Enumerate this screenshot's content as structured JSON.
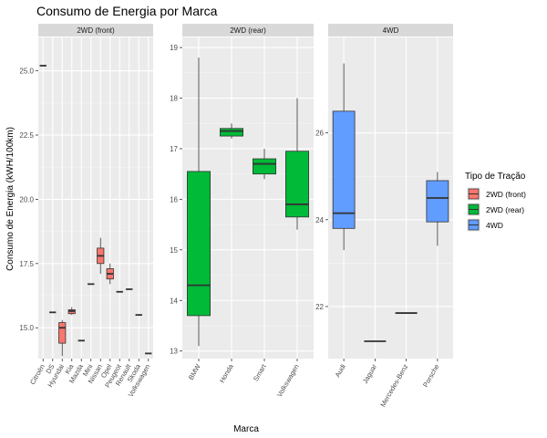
{
  "chart_data": {
    "type": "boxplot",
    "title": "Consumo de Energia por Marca",
    "xlabel": "Marca",
    "ylabel": "Consumo de Energia (kWH/100km)",
    "legend": {
      "title": "Tipo de Tração",
      "position": "right",
      "entries": [
        {
          "label": "2WD (front)",
          "color": "#F8766D"
        },
        {
          "label": "2WD (rear)",
          "color": "#00BA38"
        },
        {
          "label": "4WD",
          "color": "#619CFF"
        }
      ]
    },
    "grid": true,
    "facets": [
      {
        "label": "2WD (front)",
        "color": "#F8766D",
        "ylim": [
          13.8,
          26.3
        ],
        "yticks": [
          15.0,
          17.5,
          20.0,
          22.5,
          25.0
        ],
        "ytick_labels": [
          "15.0",
          "17.5",
          "20.0",
          "22.5",
          "25.0"
        ],
        "categories": [
          "Citroën",
          "DS",
          "Hyundai",
          "Kia",
          "Mazda",
          "Mini",
          "Nissan",
          "Opel",
          "Peugeot",
          "Renault",
          "Skoda",
          "Volkswagen"
        ],
        "boxes": [
          {
            "category": "Citroën",
            "min": 25.2,
            "q1": 25.2,
            "median": 25.2,
            "q3": 25.2,
            "max": 25.2
          },
          {
            "category": "DS",
            "min": 15.6,
            "q1": 15.6,
            "median": 15.6,
            "q3": 15.6,
            "max": 15.6
          },
          {
            "category": "Hyundai",
            "min": 13.9,
            "q1": 14.4,
            "median": 15.0,
            "q3": 15.2,
            "max": 15.3
          },
          {
            "category": "Kia",
            "min": 15.5,
            "q1": 15.55,
            "median": 15.65,
            "q3": 15.7,
            "max": 15.8
          },
          {
            "category": "Mazda",
            "min": 14.5,
            "q1": 14.5,
            "median": 14.5,
            "q3": 14.5,
            "max": 14.5
          },
          {
            "category": "Mini",
            "min": 16.7,
            "q1": 16.7,
            "median": 16.7,
            "q3": 16.7,
            "max": 16.7
          },
          {
            "category": "Nissan",
            "min": 17.1,
            "q1": 17.5,
            "median": 17.8,
            "q3": 18.1,
            "max": 18.5
          },
          {
            "category": "Opel",
            "min": 16.7,
            "q1": 16.9,
            "median": 17.1,
            "q3": 17.3,
            "max": 17.5
          },
          {
            "category": "Peugeot",
            "min": 16.4,
            "q1": 16.4,
            "median": 16.4,
            "q3": 16.4,
            "max": 16.4
          },
          {
            "category": "Renault",
            "min": 16.5,
            "q1": 16.5,
            "median": 16.5,
            "q3": 16.5,
            "max": 16.5
          },
          {
            "category": "Skoda",
            "min": 15.5,
            "q1": 15.5,
            "median": 15.5,
            "q3": 15.5,
            "max": 15.5
          },
          {
            "category": "Volkswagen",
            "min": 14.0,
            "q1": 14.0,
            "median": 14.0,
            "q3": 14.0,
            "max": 14.0
          }
        ]
      },
      {
        "label": "2WD (rear)",
        "color": "#00BA38",
        "ylim": [
          12.85,
          19.2
        ],
        "yticks": [
          13,
          14,
          15,
          16,
          17,
          18,
          19
        ],
        "ytick_labels": [
          "13",
          "14",
          "15",
          "16",
          "17",
          "18",
          "19"
        ],
        "categories": [
          "BMW",
          "Honda",
          "Smart",
          "Volkswagen"
        ],
        "boxes": [
          {
            "category": "BMW",
            "min": 13.1,
            "q1": 13.7,
            "median": 14.3,
            "q3": 16.55,
            "max": 18.8
          },
          {
            "category": "Honda",
            "min": 17.2,
            "q1": 17.25,
            "median": 17.35,
            "q3": 17.4,
            "max": 17.5
          },
          {
            "category": "Smart",
            "min": 16.4,
            "q1": 16.5,
            "median": 16.7,
            "q3": 16.8,
            "max": 17.0
          },
          {
            "category": "Volkswagen",
            "min": 15.4,
            "q1": 15.65,
            "median": 15.9,
            "q3": 16.95,
            "max": 18.0
          }
        ]
      },
      {
        "label": "4WD",
        "color": "#619CFF",
        "ylim": [
          20.8,
          28.2
        ],
        "yticks": [
          22,
          24,
          26
        ],
        "ytick_labels": [
          "22",
          "24",
          "26"
        ],
        "categories": [
          "Audi",
          "Jaguar",
          "Mercedes-Benz",
          "Porsche"
        ],
        "boxes": [
          {
            "category": "Audi",
            "min": 23.3,
            "q1": 23.8,
            "median": 24.15,
            "q3": 26.5,
            "max": 27.6
          },
          {
            "category": "Jaguar",
            "min": 21.2,
            "q1": 21.2,
            "median": 21.2,
            "q3": 21.2,
            "max": 21.2
          },
          {
            "category": "Mercedes-Benz",
            "min": 21.85,
            "q1": 21.85,
            "median": 21.85,
            "q3": 21.85,
            "max": 21.85
          },
          {
            "category": "Porsche",
            "min": 23.4,
            "q1": 23.95,
            "median": 24.5,
            "q3": 24.9,
            "max": 25.1
          }
        ]
      }
    ]
  }
}
